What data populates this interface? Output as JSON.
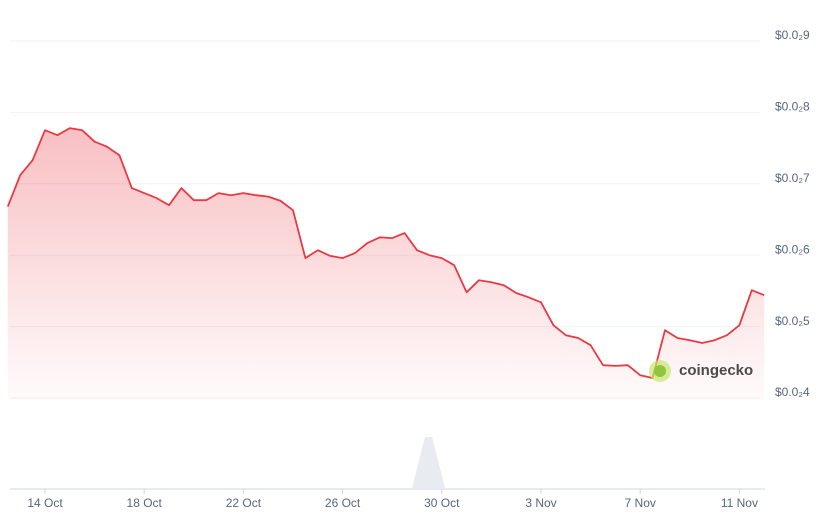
{
  "chart_data": {
    "type": "line",
    "categories": [
      null,
      null,
      null,
      "14 Oct",
      null,
      null,
      null,
      null,
      null,
      null,
      null,
      "18 Oct",
      null,
      null,
      null,
      null,
      null,
      null,
      null,
      "22 Oct",
      null,
      null,
      null,
      null,
      null,
      null,
      null,
      "26 Oct",
      null,
      null,
      null,
      null,
      null,
      null,
      null,
      "30 Oct",
      null,
      null,
      null,
      null,
      null,
      null,
      null,
      "3 Nov",
      null,
      null,
      null,
      null,
      null,
      null,
      null,
      "7 Nov",
      null,
      null,
      null,
      null,
      null,
      null,
      null,
      "11 Nov",
      null,
      null
    ],
    "series": [
      {
        "color": "#ea3943",
        "values": [
          0.00668,
          0.00712,
          0.00733,
          0.00775,
          0.00768,
          0.00778,
          0.00775,
          0.00759,
          0.00752,
          0.0074,
          0.00694,
          0.00687,
          0.0068,
          0.0067,
          0.00694,
          0.00677,
          0.00677,
          0.00687,
          0.00684,
          0.00687,
          0.00684,
          0.00682,
          0.00676,
          0.00663,
          0.00596,
          0.00607,
          0.00599,
          0.00596,
          0.00603,
          0.00617,
          0.00625,
          0.00624,
          0.00631,
          0.00607,
          0.006,
          0.00596,
          0.00586,
          0.00548,
          0.00565,
          0.00562,
          0.00558,
          0.00547,
          0.00541,
          0.00534,
          0.00502,
          0.00488,
          0.00484,
          0.00474,
          0.00446,
          0.00445,
          0.00446,
          0.00432,
          0.00428,
          0.00495,
          0.00484,
          0.00481,
          0.00477,
          0.00481,
          0.00488,
          0.00502,
          0.00551,
          0.00544
        ]
      }
    ],
    "ylim": [
      0.0038,
      0.0094
    ],
    "yticks": [
      {
        "value": 0.009,
        "label": "$0.0₂9"
      },
      {
        "value": 0.008,
        "label": "$0.0₂8"
      },
      {
        "value": 0.007,
        "label": "$0.0₂7"
      },
      {
        "value": 0.006,
        "label": "$0.0₂6"
      },
      {
        "value": 0.005,
        "label": "$0.0₂5"
      },
      {
        "value": 0.004,
        "label": "$0.0₂4"
      }
    ],
    "grid": true,
    "watermark": "coingecko"
  }
}
